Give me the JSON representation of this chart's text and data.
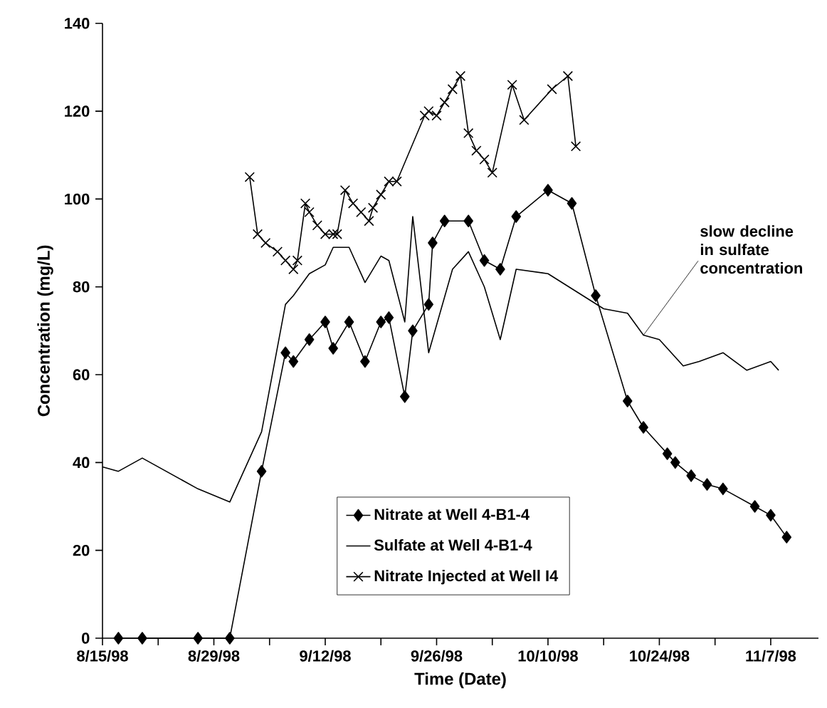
{
  "chart_data": {
    "type": "line",
    "xlabel": "Time (Date)",
    "ylabel": "Concentration (mg/L)",
    "xlim": [
      "1998-08-15",
      "1998-11-13"
    ],
    "ylim": [
      0,
      140
    ],
    "yticks": [
      0,
      20,
      40,
      60,
      80,
      100,
      120,
      140
    ],
    "xticks": [
      {
        "value": "1998-08-15",
        "label": "8/15/98"
      },
      {
        "value": "1998-08-22",
        "label": null
      },
      {
        "value": "1998-08-29",
        "label": "8/29/98"
      },
      {
        "value": "1998-09-05",
        "label": null
      },
      {
        "value": "1998-09-12",
        "label": "9/12/98"
      },
      {
        "value": "1998-09-19",
        "label": null
      },
      {
        "value": "1998-09-26",
        "label": "9/26/98"
      },
      {
        "value": "1998-10-03",
        "label": null
      },
      {
        "value": "1998-10-10",
        "label": "10/10/98"
      },
      {
        "value": "1998-10-17",
        "label": null
      },
      {
        "value": "1998-10-24",
        "label": "10/24/98"
      },
      {
        "value": "1998-10-31",
        "label": null
      },
      {
        "value": "1998-11-07",
        "label": "11/7/98"
      }
    ],
    "grid": false,
    "legend": "bottom",
    "annotations": [
      {
        "text": "slow decline in sulfate concentration",
        "x": "1998-10-22",
        "y": 69
      }
    ],
    "series": [
      {
        "name": "Nitrate at Well 4-B1-4",
        "color": "#000000",
        "marker": "diamond",
        "x": [
          "1998-08-17",
          "1998-08-20",
          "1998-08-27",
          "1998-08-31",
          "1998-09-04",
          "1998-09-07",
          "1998-09-08",
          "1998-09-10",
          "1998-09-12",
          "1998-09-13",
          "1998-09-15",
          "1998-09-17",
          "1998-09-19",
          "1998-09-20",
          "1998-09-22",
          "1998-09-23",
          "1998-09-25",
          "1998-09-25T12:00",
          "1998-09-27",
          "1998-09-30",
          "1998-10-02",
          "1998-10-04",
          "1998-10-06",
          "1998-10-10",
          "1998-10-13",
          "1998-10-16",
          "1998-10-20",
          "1998-10-22",
          "1998-10-25",
          "1998-10-26",
          "1998-10-28",
          "1998-10-30",
          "1998-11-01",
          "1998-11-05",
          "1998-11-07",
          "1998-11-09"
        ],
        "values": [
          0,
          0,
          0,
          0,
          38,
          65,
          63,
          68,
          72,
          66,
          72,
          63,
          72,
          73,
          55,
          70,
          76,
          90,
          95,
          95,
          86,
          84,
          96,
          102,
          99,
          78,
          54,
          48,
          42,
          40,
          37,
          35,
          34,
          30,
          28,
          23
        ]
      },
      {
        "name": "Sulfate at Well 4-B1-4",
        "color": "#000000",
        "marker": "none",
        "x": [
          "1998-08-15",
          "1998-08-17",
          "1998-08-20",
          "1998-08-27",
          "1998-08-31",
          "1998-09-04",
          "1998-09-07",
          "1998-09-08",
          "1998-09-10",
          "1998-09-12",
          "1998-09-13",
          "1998-09-15",
          "1998-09-17",
          "1998-09-19",
          "1998-09-20",
          "1998-09-22",
          "1998-09-23",
          "1998-09-25",
          "1998-09-28",
          "1998-09-30",
          "1998-10-02",
          "1998-10-04",
          "1998-10-06",
          "1998-10-10",
          "1998-10-17",
          "1998-10-20",
          "1998-10-22",
          "1998-10-24",
          "1998-10-27",
          "1998-10-29",
          "1998-11-01",
          "1998-11-04",
          "1998-11-07",
          "1998-11-08"
        ],
        "values": [
          39,
          38,
          41,
          34,
          31,
          47,
          76,
          78,
          83,
          85,
          89,
          89,
          81,
          87,
          86,
          72,
          96,
          65,
          84,
          88,
          80,
          68,
          84,
          83,
          75,
          74,
          69,
          68,
          62,
          63,
          65,
          61,
          63,
          61
        ]
      },
      {
        "name": "Nitrate Injected at Well I4",
        "color": "#000000",
        "marker": "cross",
        "x": [
          "1998-09-02T12:00",
          "1998-09-03T12:00",
          "1998-09-04T12:00",
          "1998-09-06",
          "1998-09-07",
          "1998-09-08",
          "1998-09-08T12:00",
          "1998-09-09T12:00",
          "1998-09-10",
          "1998-09-11",
          "1998-09-12",
          "1998-09-13",
          "1998-09-13T12:00",
          "1998-09-14T12:00",
          "1998-09-15T12:00",
          "1998-09-16T12:00",
          "1998-09-17T12:00",
          "1998-09-18",
          "1998-09-19",
          "1998-09-20",
          "1998-09-21",
          "1998-09-24T12:00",
          "1998-09-25",
          "1998-09-26",
          "1998-09-27",
          "1998-09-28",
          "1998-09-29",
          "1998-09-30",
          "1998-10-01",
          "1998-10-02",
          "1998-10-03",
          "1998-10-05T12:00",
          "1998-10-07",
          "1998-10-10T12:00",
          "1998-10-12T12:00",
          "1998-10-13T12:00"
        ],
        "values": [
          105,
          92,
          90,
          88,
          86,
          84,
          86,
          99,
          97,
          94,
          92,
          92,
          92,
          102,
          99,
          97,
          95,
          98,
          101,
          104,
          104,
          119,
          120,
          119,
          122,
          125,
          128,
          115,
          111,
          109,
          106,
          126,
          118,
          125,
          128,
          112
        ]
      }
    ]
  }
}
